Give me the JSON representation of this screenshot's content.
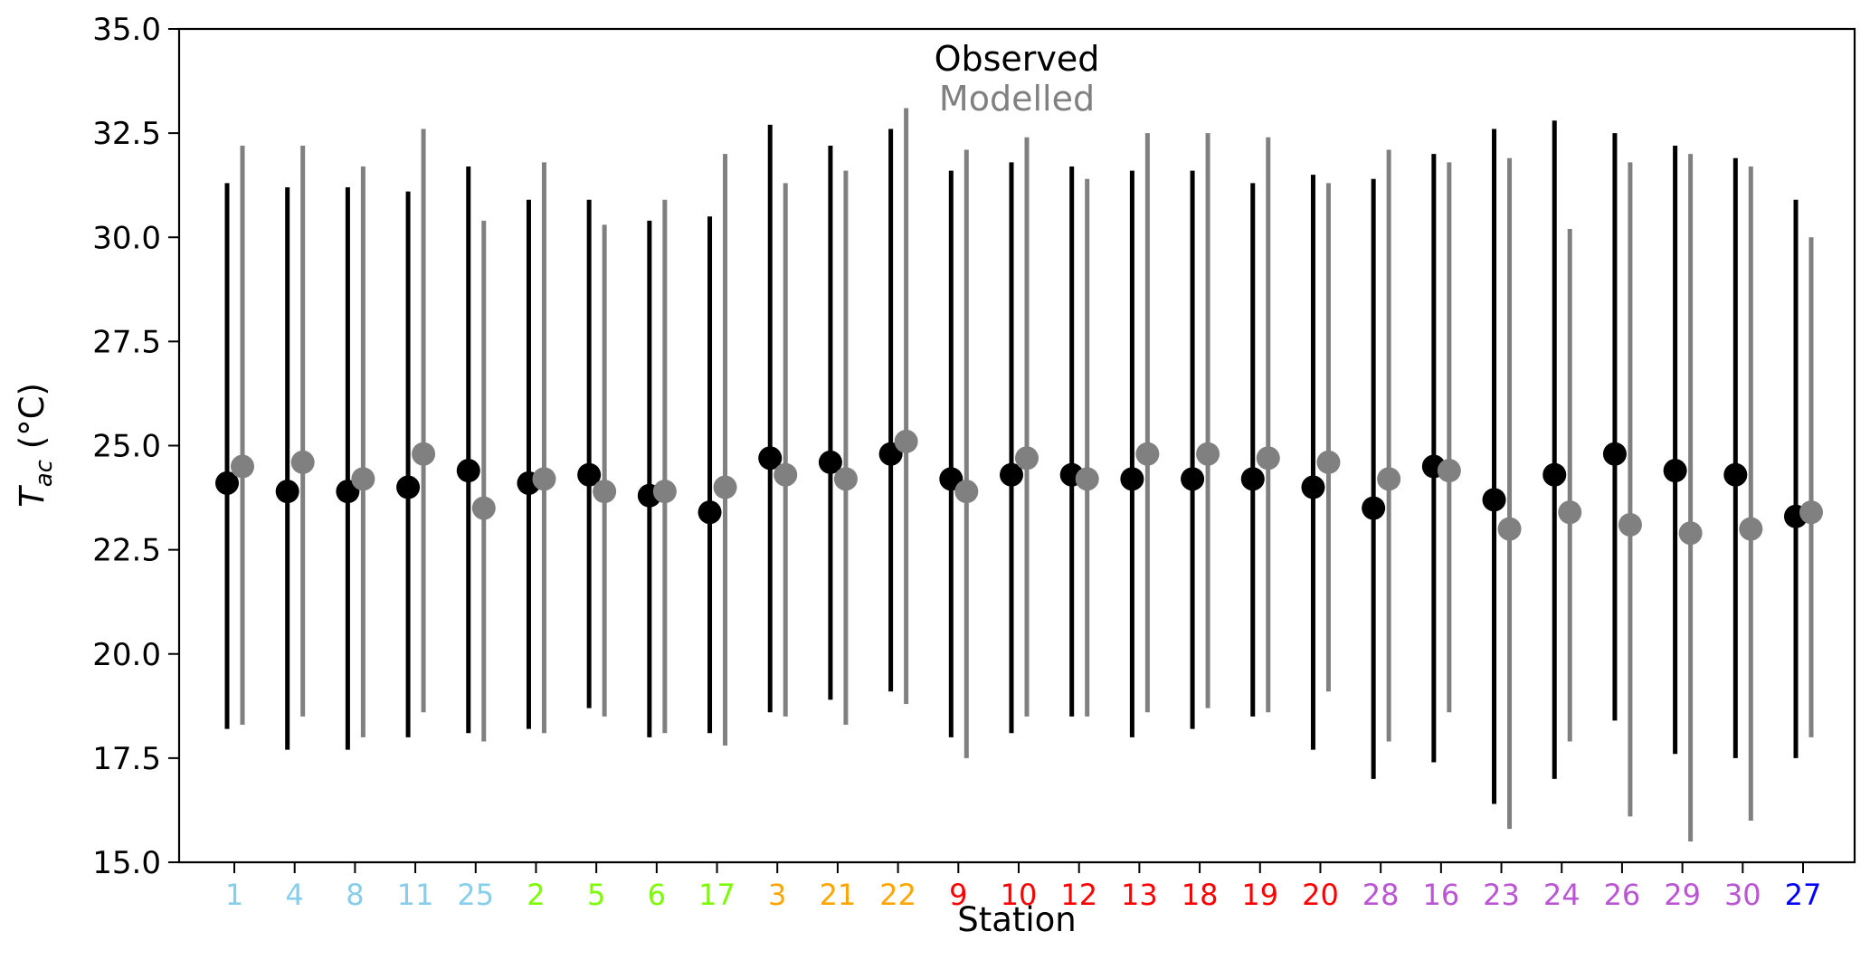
{
  "chart_data": {
    "type": "scatter",
    "xlabel": "Station",
    "ylabel": "T_ac (°C)",
    "ylabel_main": "T",
    "ylabel_sub": "ac",
    "ylabel_unit": " (°C)",
    "ylim": [
      15.0,
      35.0
    ],
    "yticks": [
      "15.0",
      "17.5",
      "20.0",
      "22.5",
      "25.0",
      "27.5",
      "30.0",
      "32.5",
      "35.0"
    ],
    "grid": false,
    "legend_position": "top-center",
    "categories": [
      "1",
      "4",
      "8",
      "11",
      "25",
      "2",
      "5",
      "6",
      "17",
      "3",
      "21",
      "22",
      "9",
      "10",
      "12",
      "13",
      "18",
      "19",
      "20",
      "28",
      "16",
      "23",
      "24",
      "26",
      "29",
      "30",
      "27"
    ],
    "category_colors": [
      "#87ceeb",
      "#87ceeb",
      "#87ceeb",
      "#87ceeb",
      "#87ceeb",
      "#7cfc00",
      "#7cfc00",
      "#7cfc00",
      "#7cfc00",
      "#ffa500",
      "#ffa500",
      "#ffa500",
      "#ff0000",
      "#ff0000",
      "#ff0000",
      "#ff0000",
      "#ff0000",
      "#ff0000",
      "#ff0000",
      "#ba55d3",
      "#ba55d3",
      "#ba55d3",
      "#ba55d3",
      "#ba55d3",
      "#ba55d3",
      "#ba55d3",
      "#0000ff"
    ],
    "series": [
      {
        "name": "Observed",
        "color": "#000000",
        "values": [
          24.1,
          23.9,
          23.9,
          24.0,
          24.4,
          24.1,
          24.3,
          23.8,
          23.4,
          24.7,
          24.6,
          24.8,
          24.2,
          24.3,
          24.3,
          24.2,
          24.2,
          24.2,
          24.0,
          23.5,
          24.5,
          23.7,
          24.3,
          24.8,
          24.4,
          24.3,
          23.3
        ],
        "min": [
          18.2,
          17.7,
          17.7,
          18.0,
          18.1,
          18.2,
          18.7,
          18.0,
          18.1,
          18.6,
          18.9,
          19.1,
          18.0,
          18.1,
          18.5,
          18.0,
          18.2,
          18.5,
          17.7,
          17.0,
          17.4,
          16.4,
          17.0,
          18.4,
          17.6,
          17.5,
          17.5
        ],
        "max": [
          31.3,
          31.2,
          31.2,
          31.1,
          31.7,
          30.9,
          30.9,
          30.4,
          30.5,
          32.7,
          32.2,
          32.6,
          31.6,
          31.8,
          31.7,
          31.6,
          31.6,
          31.3,
          31.5,
          31.4,
          32.0,
          32.6,
          32.8,
          32.5,
          32.2,
          31.9,
          30.9
        ]
      },
      {
        "name": "Modelled",
        "color": "#808080",
        "values": [
          24.5,
          24.6,
          24.2,
          24.8,
          23.5,
          24.2,
          23.9,
          23.9,
          24.0,
          24.3,
          24.2,
          25.1,
          23.9,
          24.7,
          24.2,
          24.8,
          24.8,
          24.7,
          24.6,
          24.2,
          24.4,
          23.0,
          23.4,
          23.1,
          22.9,
          23.0,
          23.4
        ],
        "min": [
          18.3,
          18.5,
          18.0,
          18.6,
          17.9,
          18.1,
          18.5,
          18.1,
          17.8,
          18.5,
          18.3,
          18.8,
          17.5,
          18.5,
          18.5,
          18.6,
          18.7,
          18.6,
          19.1,
          17.9,
          18.6,
          15.8,
          17.9,
          16.1,
          15.5,
          16.0,
          18.0
        ],
        "max": [
          32.2,
          32.2,
          31.7,
          32.6,
          30.4,
          31.8,
          30.3,
          30.9,
          32.0,
          31.3,
          31.6,
          33.1,
          32.1,
          32.4,
          31.4,
          32.5,
          32.5,
          32.4,
          31.3,
          32.1,
          31.8,
          31.9,
          30.2,
          31.8,
          32.0,
          31.7,
          30.0
        ]
      }
    ]
  }
}
